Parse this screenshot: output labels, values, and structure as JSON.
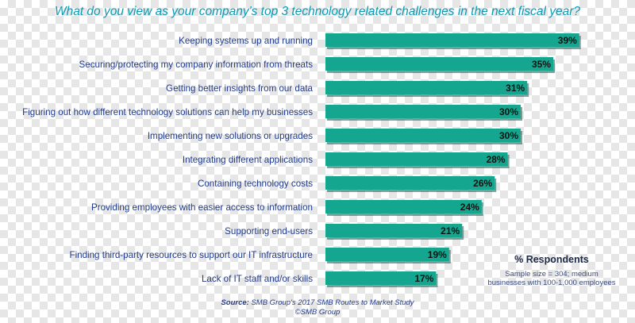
{
  "chart_data": {
    "type": "bar",
    "orientation": "horizontal",
    "title": "What do you view as your company's top 3 technology related challenges in the next fiscal year?",
    "categories": [
      "Keeping systems up and running",
      "Securing/protecting my company information from threats",
      "Getting better insights from our data",
      "Figuring out how different technology solutions can help my businesses",
      "Implementing new solutions or upgrades",
      "Integrating different applications",
      "Containing technology costs",
      "Providing employees with easier access to information",
      "Supporting end-users",
      "Finding third-party resources to support our IT infrastructure",
      "Lack of IT staff and/or skills"
    ],
    "values": [
      39,
      35,
      31,
      30,
      30,
      28,
      26,
      24,
      21,
      19,
      17
    ],
    "value_labels": [
      "39%",
      "35%",
      "31%",
      "30%",
      "30%",
      "28%",
      "26%",
      "24%",
      "21%",
      "19%",
      "17%"
    ],
    "xlabel": "% Respondents",
    "xlim": [
      0,
      40
    ],
    "grid": false,
    "bar_color": "#14a68f",
    "note": "Sample size = 304; medium businesses with 100-1,000 employees",
    "note_lines": [
      "Sample size = 304; medium",
      "businesses with 100-1,000 employees"
    ]
  },
  "source": {
    "label": "Source:",
    "text": " SMB Group's 2017 SMB Routes to Market Study",
    "copyright": "©SMB Group"
  }
}
